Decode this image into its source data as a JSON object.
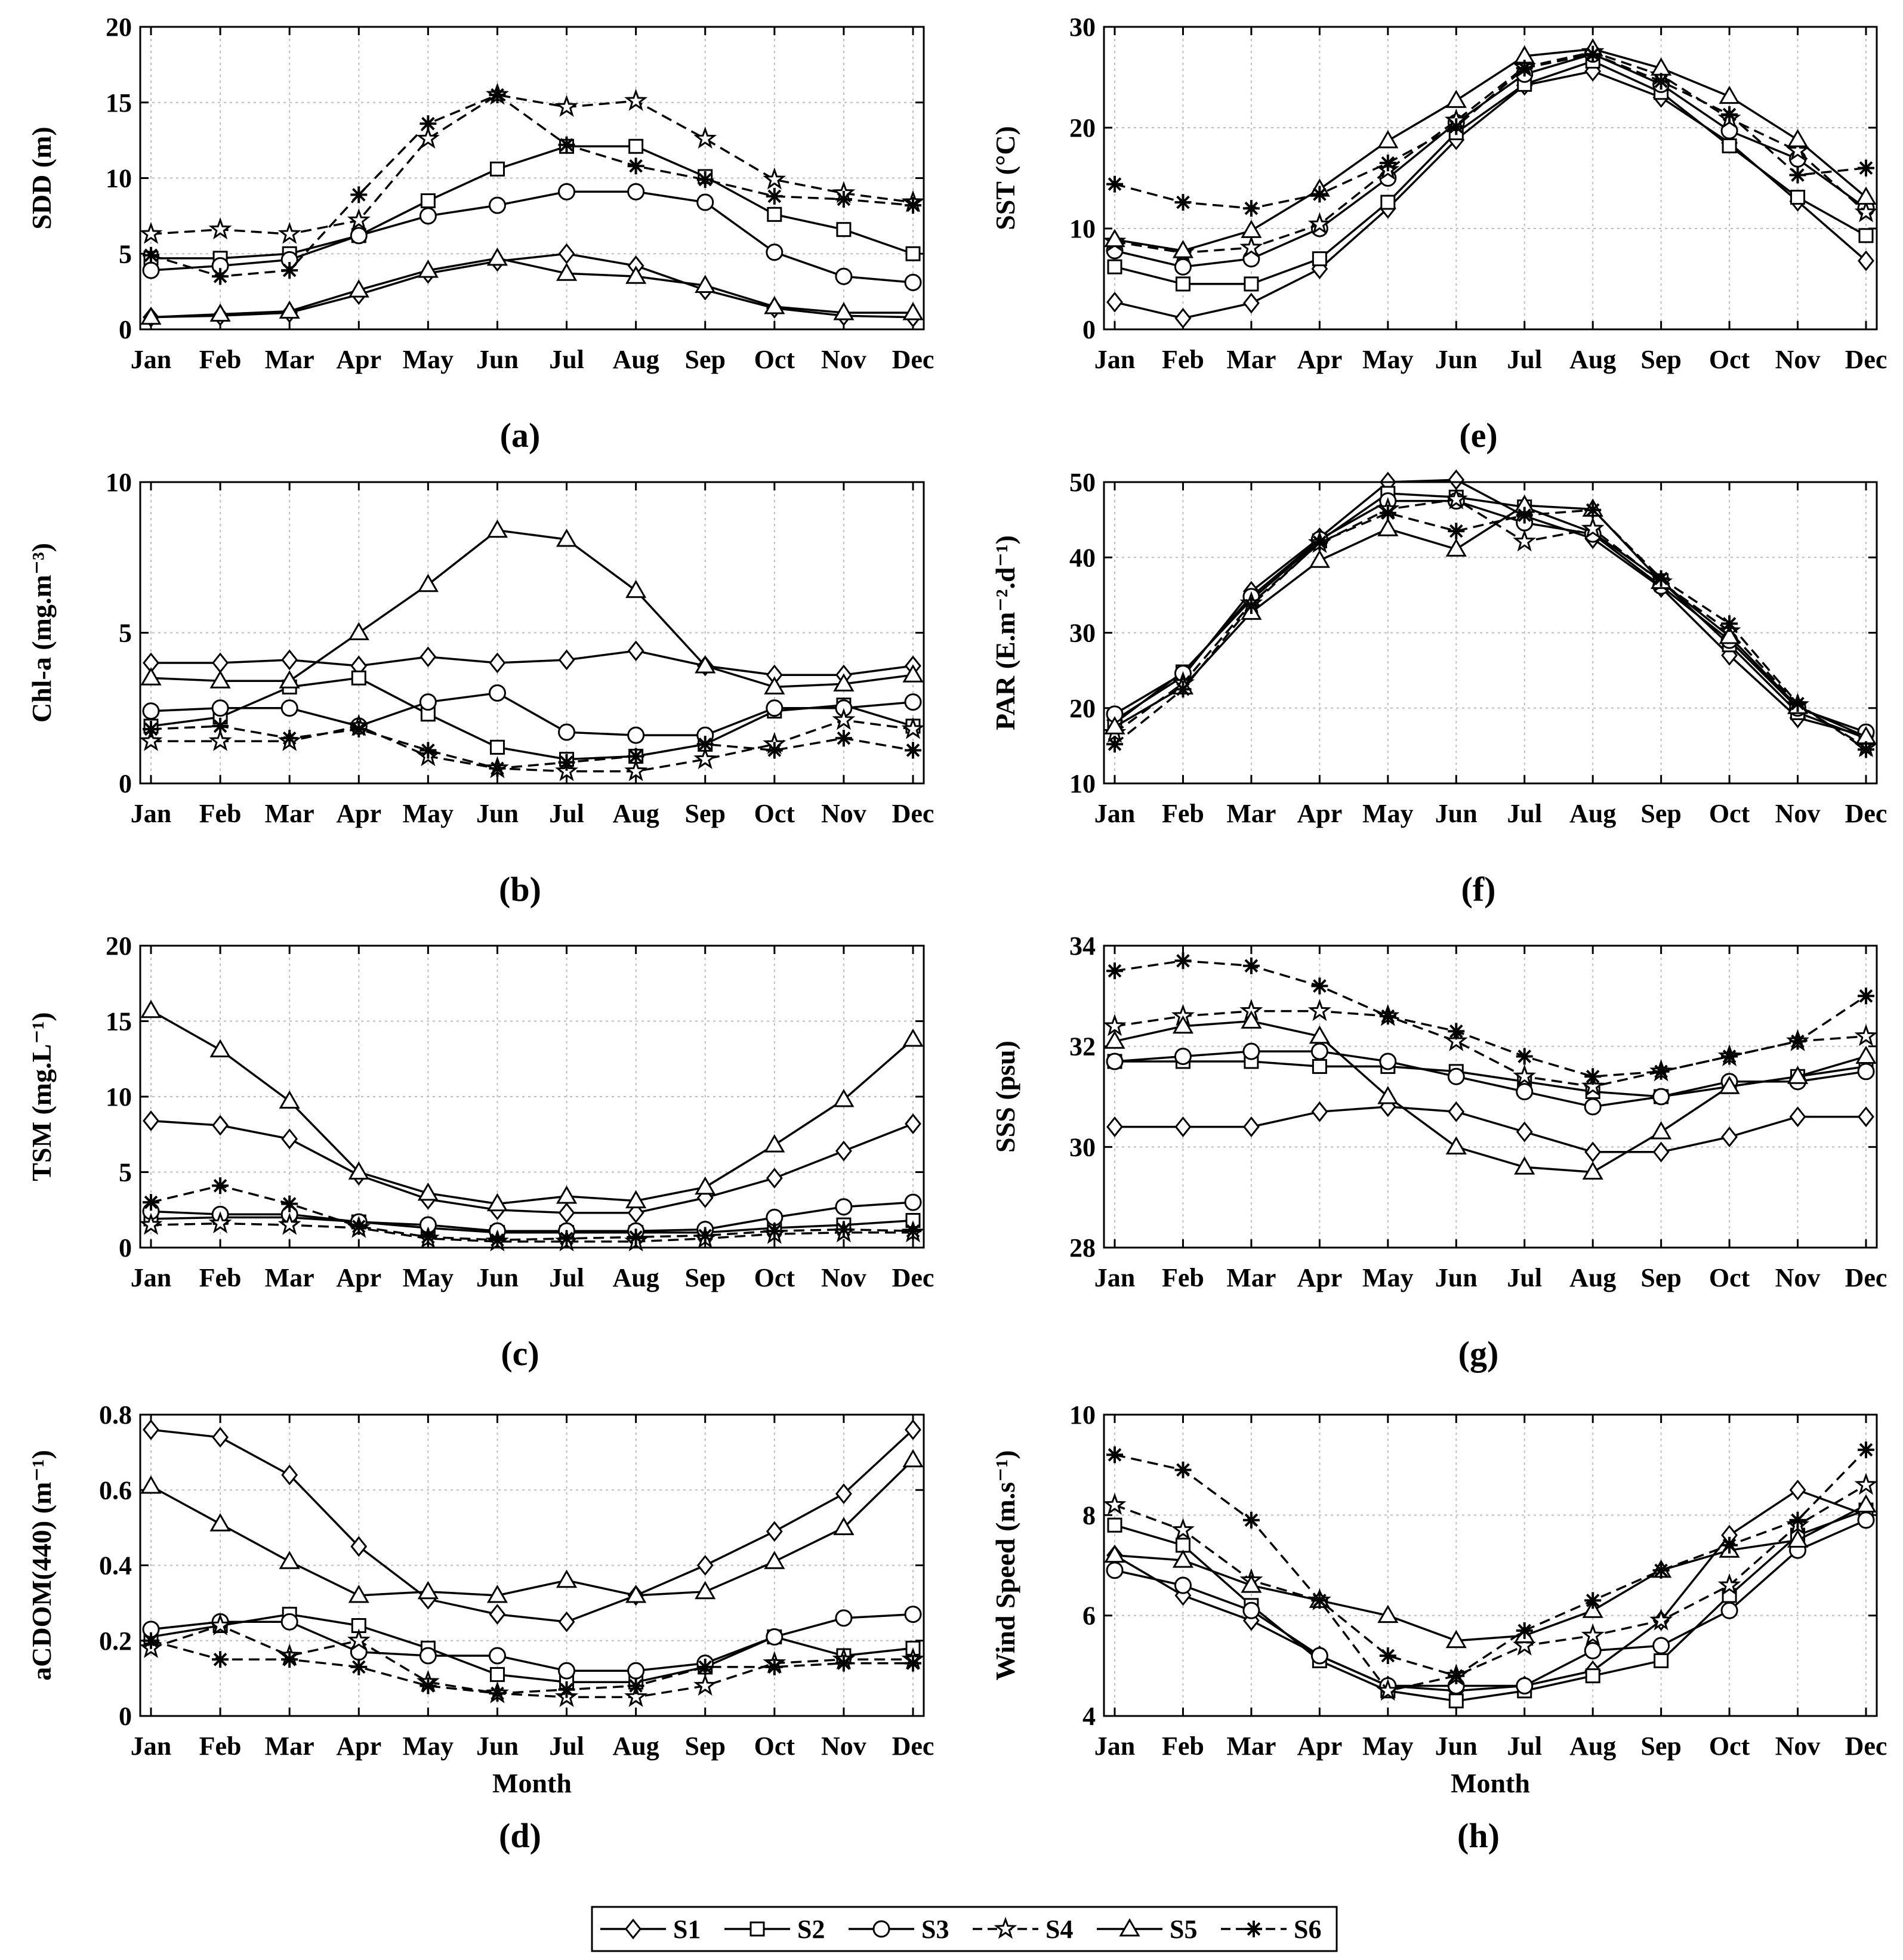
{
  "months": [
    "Jan",
    "Feb",
    "Mar",
    "Apr",
    "May",
    "Jun",
    "Jul",
    "Aug",
    "Sep",
    "Oct",
    "Nov",
    "Dec"
  ],
  "styles": {
    "S1": {
      "marker": "diamond",
      "dash": false
    },
    "S2": {
      "marker": "square",
      "dash": false
    },
    "S3": {
      "marker": "circle",
      "dash": false
    },
    "S4": {
      "marker": "star",
      "dash": true
    },
    "S5": {
      "marker": "triangle",
      "dash": false
    },
    "S6": {
      "marker": "asterisk",
      "dash": true
    }
  },
  "legend": {
    "entries": [
      "S1",
      "S2",
      "S3",
      "S4",
      "S5",
      "S6"
    ]
  },
  "chart_data": [
    {
      "id": "a",
      "type": "line",
      "panel_label": "(a)",
      "ylabel": "SDD (m)",
      "xlabel": "",
      "ylim": [
        0,
        20
      ],
      "yticks": [
        "0",
        "5",
        "10",
        "15",
        "20"
      ],
      "grid": true,
      "series": [
        {
          "name": "S1",
          "values": [
            0.8,
            0.9,
            1.1,
            2.3,
            3.7,
            4.5,
            5.0,
            4.2,
            2.6,
            1.4,
            0.9,
            0.8
          ]
        },
        {
          "name": "S2",
          "values": [
            4.7,
            4.7,
            5.0,
            6.2,
            8.5,
            10.6,
            12.1,
            12.1,
            10.1,
            7.6,
            6.6,
            5.0
          ]
        },
        {
          "name": "S3",
          "values": [
            3.9,
            4.2,
            4.6,
            6.2,
            7.5,
            8.2,
            9.1,
            9.1,
            8.4,
            5.1,
            3.5,
            3.1
          ]
        },
        {
          "name": "S4",
          "values": [
            6.3,
            6.6,
            6.3,
            7.2,
            12.6,
            15.5,
            14.7,
            15.1,
            12.6,
            9.9,
            9.0,
            8.4
          ]
        },
        {
          "name": "S5",
          "values": [
            0.8,
            1.0,
            1.2,
            2.6,
            3.9,
            4.7,
            3.7,
            3.5,
            2.9,
            1.5,
            1.1,
            1.1
          ]
        },
        {
          "name": "S6",
          "values": [
            4.9,
            3.5,
            3.9,
            8.9,
            13.6,
            15.5,
            12.2,
            10.8,
            9.9,
            8.8,
            8.6,
            8.2
          ]
        }
      ]
    },
    {
      "id": "b",
      "type": "line",
      "panel_label": "(b)",
      "ylabel": "Chl-a (mg.m⁻³)",
      "xlabel": "",
      "ylim": [
        0,
        10
      ],
      "yticks": [
        "0",
        "5",
        "10"
      ],
      "grid": true,
      "series": [
        {
          "name": "S1",
          "values": [
            4.0,
            4.0,
            4.1,
            3.9,
            4.2,
            4.0,
            4.1,
            4.4,
            3.9,
            3.6,
            3.6,
            3.9
          ]
        },
        {
          "name": "S2",
          "values": [
            1.9,
            2.2,
            3.2,
            3.5,
            2.3,
            1.2,
            0.8,
            0.9,
            1.3,
            2.4,
            2.6,
            1.9
          ]
        },
        {
          "name": "S3",
          "values": [
            2.4,
            2.5,
            2.5,
            1.9,
            2.7,
            3.0,
            1.7,
            1.6,
            1.6,
            2.5,
            2.5,
            2.7
          ]
        },
        {
          "name": "S4",
          "values": [
            1.4,
            1.4,
            1.4,
            1.9,
            0.9,
            0.5,
            0.4,
            0.4,
            0.8,
            1.3,
            2.1,
            1.8
          ]
        },
        {
          "name": "S5",
          "values": [
            3.5,
            3.4,
            3.4,
            5.0,
            6.6,
            8.4,
            8.1,
            6.4,
            3.9,
            3.2,
            3.3,
            3.6
          ]
        },
        {
          "name": "S6",
          "values": [
            1.8,
            1.9,
            1.5,
            1.8,
            1.1,
            0.5,
            0.7,
            0.9,
            1.3,
            1.1,
            1.5,
            1.1
          ]
        }
      ]
    },
    {
      "id": "c",
      "type": "line",
      "panel_label": "(c)",
      "ylabel": "TSM (mg.L⁻¹)",
      "xlabel": "",
      "ylim": [
        0,
        20
      ],
      "yticks": [
        "0",
        "5",
        "10",
        "15",
        "20"
      ],
      "grid": true,
      "series": [
        {
          "name": "S1",
          "values": [
            8.4,
            8.1,
            7.2,
            4.8,
            3.2,
            2.5,
            2.3,
            2.3,
            3.3,
            4.6,
            6.4,
            8.2
          ]
        },
        {
          "name": "S2",
          "values": [
            1.9,
            2.0,
            2.0,
            1.7,
            1.3,
            1.0,
            1.0,
            1.0,
            1.0,
            1.3,
            1.5,
            1.8
          ]
        },
        {
          "name": "S3",
          "values": [
            2.4,
            2.2,
            2.2,
            1.7,
            1.5,
            1.1,
            1.1,
            1.1,
            1.2,
            2.0,
            2.7,
            3.0
          ]
        },
        {
          "name": "S4",
          "values": [
            1.5,
            1.6,
            1.5,
            1.3,
            0.6,
            0.4,
            0.4,
            0.4,
            0.6,
            0.9,
            1.0,
            1.0
          ]
        },
        {
          "name": "S5",
          "values": [
            15.7,
            13.1,
            9.7,
            5.0,
            3.6,
            2.9,
            3.4,
            3.1,
            4.0,
            6.8,
            9.8,
            13.8
          ]
        },
        {
          "name": "S6",
          "values": [
            3.0,
            4.1,
            2.9,
            1.4,
            0.7,
            0.5,
            0.6,
            0.7,
            0.8,
            1.1,
            1.2,
            1.1
          ]
        }
      ]
    },
    {
      "id": "d",
      "type": "line",
      "panel_label": "(d)",
      "ylabel": "aCDOM(440) (m⁻¹)",
      "xlabel": "Month",
      "ylim": [
        0,
        0.8
      ],
      "yticks": [
        "0",
        "0.2",
        "0.4",
        "0.6",
        "0.8"
      ],
      "grid": true,
      "series": [
        {
          "name": "S1",
          "values": [
            0.76,
            0.74,
            0.64,
            0.45,
            0.31,
            0.27,
            0.25,
            0.32,
            0.4,
            0.49,
            0.59,
            0.76
          ]
        },
        {
          "name": "S2",
          "values": [
            0.21,
            0.24,
            0.27,
            0.24,
            0.18,
            0.11,
            0.09,
            0.09,
            0.13,
            0.21,
            0.16,
            0.18
          ]
        },
        {
          "name": "S3",
          "values": [
            0.23,
            0.25,
            0.25,
            0.17,
            0.16,
            0.16,
            0.12,
            0.12,
            0.14,
            0.21,
            0.26,
            0.27
          ]
        },
        {
          "name": "S4",
          "values": [
            0.18,
            0.24,
            0.16,
            0.2,
            0.09,
            0.06,
            0.05,
            0.05,
            0.08,
            0.14,
            0.15,
            0.15
          ]
        },
        {
          "name": "S5",
          "values": [
            0.61,
            0.51,
            0.41,
            0.32,
            0.33,
            0.32,
            0.36,
            0.32,
            0.33,
            0.41,
            0.5,
            0.68
          ]
        },
        {
          "name": "S6",
          "values": [
            0.2,
            0.15,
            0.15,
            0.13,
            0.08,
            0.06,
            0.07,
            0.08,
            0.13,
            0.13,
            0.14,
            0.14
          ]
        }
      ]
    },
    {
      "id": "e",
      "type": "line",
      "panel_label": "(e)",
      "ylabel": "SST (°C)",
      "xlabel": "",
      "ylim": [
        0,
        30
      ],
      "yticks": [
        "0",
        "10",
        "20",
        "30"
      ],
      "grid": true,
      "series": [
        {
          "name": "S1",
          "values": [
            2.7,
            1.1,
            2.6,
            6.0,
            12.0,
            18.8,
            24.2,
            25.6,
            23.0,
            18.5,
            12.7,
            6.8
          ]
        },
        {
          "name": "S2",
          "values": [
            6.2,
            4.5,
            4.5,
            7.0,
            12.6,
            19.5,
            24.3,
            26.6,
            23.5,
            18.2,
            13.1,
            9.3
          ]
        },
        {
          "name": "S3",
          "values": [
            7.8,
            6.2,
            7.0,
            10.0,
            15.0,
            20.5,
            25.3,
            27.3,
            24.3,
            19.7,
            16.9,
            12.0
          ]
        },
        {
          "name": "S4",
          "values": [
            8.7,
            7.6,
            8.1,
            10.4,
            15.8,
            20.7,
            26.0,
            27.5,
            25.2,
            20.9,
            17.7,
            11.6
          ]
        },
        {
          "name": "S5",
          "values": [
            8.9,
            7.8,
            9.8,
            13.9,
            18.7,
            22.7,
            27.1,
            27.8,
            25.9,
            23.1,
            18.8,
            13.1
          ]
        },
        {
          "name": "S6",
          "values": [
            14.4,
            12.6,
            12.0,
            13.4,
            16.5,
            20.1,
            25.9,
            27.3,
            24.6,
            21.3,
            15.3,
            16.0
          ]
        }
      ]
    },
    {
      "id": "f",
      "type": "line",
      "panel_label": "(f)",
      "ylabel": "PAR (E.m⁻².d⁻¹)",
      "xlabel": "",
      "ylim": [
        10,
        50
      ],
      "yticks": [
        "10",
        "20",
        "30",
        "40",
        "50"
      ],
      "grid": true,
      "series": [
        {
          "name": "S1",
          "values": [
            18.4,
            24.2,
            35.5,
            42.6,
            50.0,
            50.3,
            45.5,
            42.5,
            36.0,
            27.0,
            18.7,
            16.3
          ]
        },
        {
          "name": "S2",
          "values": [
            18.0,
            24.8,
            34.4,
            42.2,
            48.5,
            48.0,
            46.7,
            43.3,
            36.9,
            28.4,
            19.4,
            16.0
          ]
        },
        {
          "name": "S3",
          "values": [
            19.2,
            24.6,
            34.8,
            42.4,
            47.5,
            47.5,
            44.6,
            43.1,
            36.2,
            29.0,
            20.0,
            16.8
          ]
        },
        {
          "name": "S4",
          "values": [
            16.7,
            23.3,
            33.9,
            41.9,
            46.4,
            47.7,
            42.1,
            43.8,
            36.7,
            30.2,
            20.4,
            14.8
          ]
        },
        {
          "name": "S5",
          "values": [
            17.5,
            22.8,
            32.7,
            39.6,
            43.8,
            41.1,
            46.9,
            46.4,
            36.8,
            29.5,
            20.2,
            16.2
          ]
        },
        {
          "name": "S6",
          "values": [
            15.2,
            22.5,
            33.6,
            42.0,
            45.9,
            43.5,
            45.6,
            46.3,
            37.2,
            31.2,
            20.6,
            14.5
          ]
        }
      ]
    },
    {
      "id": "g",
      "type": "line",
      "panel_label": "(g)",
      "ylabel": "SSS (psu)",
      "xlabel": "",
      "ylim": [
        28,
        34
      ],
      "yticks": [
        "28",
        "30",
        "32",
        "34"
      ],
      "grid": true,
      "series": [
        {
          "name": "S1",
          "values": [
            30.4,
            30.4,
            30.4,
            30.7,
            30.8,
            30.7,
            30.3,
            29.9,
            29.9,
            30.2,
            30.6,
            30.6
          ]
        },
        {
          "name": "S2",
          "values": [
            31.7,
            31.7,
            31.7,
            31.6,
            31.6,
            31.5,
            31.3,
            31.1,
            31.0,
            31.2,
            31.4,
            31.6
          ]
        },
        {
          "name": "S3",
          "values": [
            31.7,
            31.8,
            31.9,
            31.9,
            31.7,
            31.4,
            31.1,
            30.8,
            31.0,
            31.3,
            31.3,
            31.5
          ]
        },
        {
          "name": "S4",
          "values": [
            32.4,
            32.6,
            32.7,
            32.7,
            32.6,
            32.1,
            31.4,
            31.2,
            31.5,
            31.8,
            32.1,
            32.2
          ]
        },
        {
          "name": "S5",
          "values": [
            32.1,
            32.4,
            32.5,
            32.2,
            31.0,
            30.0,
            29.6,
            29.5,
            30.3,
            31.2,
            31.4,
            31.8
          ]
        },
        {
          "name": "S6",
          "values": [
            33.5,
            33.7,
            33.6,
            33.2,
            32.6,
            32.3,
            31.8,
            31.4,
            31.5,
            31.8,
            32.1,
            33.0
          ]
        }
      ]
    },
    {
      "id": "h",
      "type": "line",
      "panel_label": "(h)",
      "ylabel": "Wind Speed (m.s⁻¹)",
      "xlabel": "Month",
      "ylim": [
        4,
        10
      ],
      "yticks": [
        "4",
        "6",
        "8",
        "10"
      ],
      "grid": true,
      "series": [
        {
          "name": "S1",
          "values": [
            7.2,
            6.4,
            5.9,
            5.2,
            4.6,
            4.5,
            4.6,
            4.9,
            5.9,
            7.6,
            8.5,
            8.0
          ]
        },
        {
          "name": "S2",
          "values": [
            7.8,
            7.4,
            6.2,
            5.1,
            4.5,
            4.3,
            4.5,
            4.8,
            5.1,
            6.4,
            7.6,
            8.1
          ]
        },
        {
          "name": "S3",
          "values": [
            6.9,
            6.6,
            6.1,
            5.2,
            4.6,
            4.6,
            4.6,
            5.3,
            5.4,
            6.1,
            7.3,
            7.9
          ]
        },
        {
          "name": "S4",
          "values": [
            8.2,
            7.7,
            6.7,
            6.3,
            4.5,
            4.8,
            5.4,
            5.6,
            5.9,
            6.6,
            7.8,
            8.6
          ]
        },
        {
          "name": "S5",
          "values": [
            7.2,
            7.1,
            6.6,
            6.3,
            6.0,
            5.5,
            5.6,
            6.1,
            6.9,
            7.3,
            7.5,
            8.2
          ]
        },
        {
          "name": "S6",
          "values": [
            9.2,
            8.9,
            7.9,
            6.3,
            5.2,
            4.8,
            5.7,
            6.3,
            6.9,
            7.4,
            7.9,
            9.3
          ]
        }
      ]
    }
  ]
}
